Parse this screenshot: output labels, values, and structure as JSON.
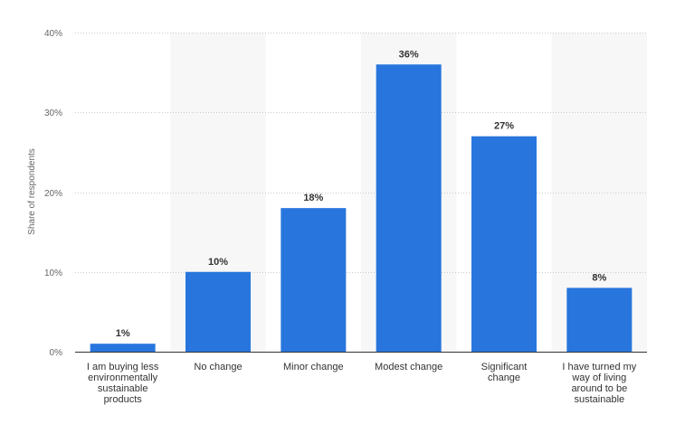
{
  "chart_data": {
    "type": "bar",
    "title": "",
    "xlabel": "",
    "ylabel": "Share of respondents",
    "ylim": [
      0,
      40
    ],
    "yticks": [
      0,
      10,
      20,
      30,
      40
    ],
    "ytick_labels": [
      "0%",
      "10%",
      "20%",
      "30%",
      "40%"
    ],
    "grid": true,
    "legend": "none",
    "categories": [
      "I am buying less environmentally sustainable products",
      "No change",
      "Minor change",
      "Modest change",
      "Significant change",
      "I have turned my way of living around to be sustainable"
    ],
    "category_lines": [
      [
        "I am buying less",
        "environmentally",
        "sustainable",
        "products"
      ],
      [
        "No change"
      ],
      [
        "Minor change"
      ],
      [
        "Modest change"
      ],
      [
        "Significant",
        "change"
      ],
      [
        "I have turned my",
        "way of living",
        "around to be",
        "sustainable"
      ]
    ],
    "values": [
      1,
      10,
      18,
      36,
      27,
      8
    ],
    "data_labels": [
      "1%",
      "10%",
      "18%",
      "36%",
      "27%",
      "8%"
    ],
    "bar_color": "#2876dd",
    "band_color": "#f7f7f7"
  }
}
